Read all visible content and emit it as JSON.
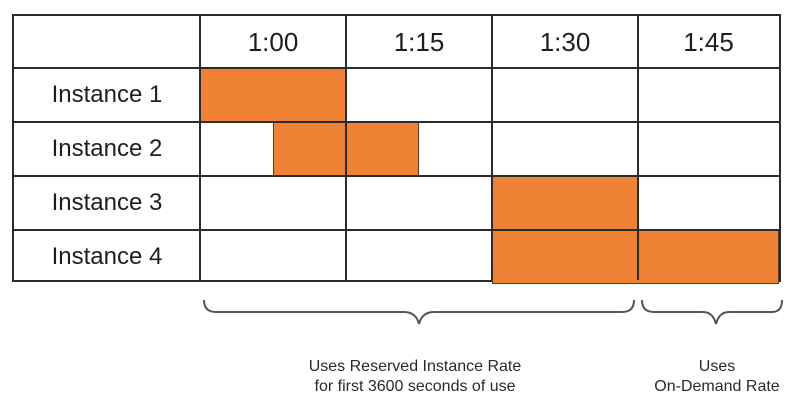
{
  "columns": [
    "1:00",
    "1:15",
    "1:30",
    "1:45"
  ],
  "rows": [
    {
      "label": "Instance 1",
      "bar": {
        "start": 0,
        "end": 1
      }
    },
    {
      "label": "Instance 2",
      "bar": {
        "start": 0.5,
        "end": 1.5
      }
    },
    {
      "label": "Instance 3",
      "bar": {
        "start": 2,
        "end": 3
      }
    },
    {
      "label": "Instance 4",
      "bar": {
        "start": 2,
        "end": 4
      }
    }
  ],
  "colors": {
    "bar": "#f08236",
    "grid": "#2b2b2b"
  },
  "captions": {
    "reserved_line1": "Uses Reserved Instance Rate",
    "reserved_line2": "for first 3600 seconds of use",
    "ondemand_line1": "Uses",
    "ondemand_line2": "On-Demand Rate"
  }
}
